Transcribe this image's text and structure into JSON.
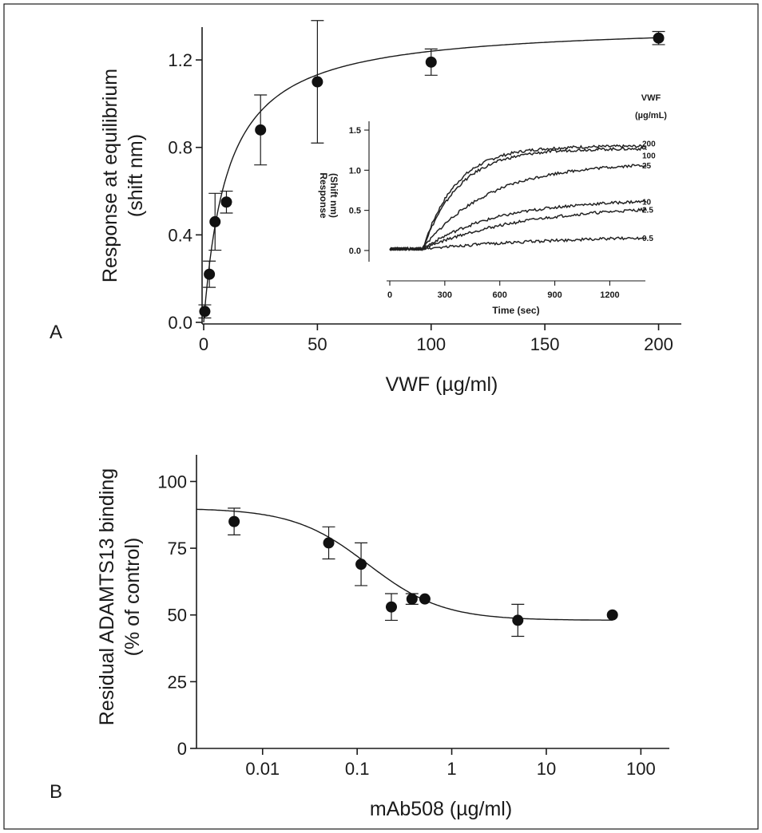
{
  "colors": {
    "ink": "#1a1a1a",
    "background": "#ffffff"
  },
  "chart_data": [
    {
      "panel": "A",
      "type": "scatter",
      "panel_label": "A",
      "xlabel": "VWF (µg/ml)",
      "ylabel_line1": "Response at equilibrium",
      "ylabel_line2": "(shift nm)",
      "xlim": [
        0,
        210
      ],
      "ylim": [
        0,
        1.35
      ],
      "x_ticks": [
        0,
        50,
        100,
        150,
        200
      ],
      "x_tick_labels": [
        "0",
        "50",
        "100",
        "150",
        "200"
      ],
      "y_ticks": [
        0.0,
        0.4,
        0.8,
        1.2
      ],
      "y_tick_labels": [
        "0.0",
        "0.4",
        "0.8",
        "1.2"
      ],
      "grid": false,
      "series": [
        {
          "x": [
            0.5,
            2.5,
            5,
            10,
            25,
            50,
            100,
            200
          ],
          "y": [
            0.05,
            0.22,
            0.46,
            0.55,
            0.88,
            1.1,
            1.19,
            1.3
          ],
          "error": [
            0.03,
            0.06,
            0.13,
            0.05,
            0.16,
            0.28,
            0.06,
            0.03
          ],
          "fit": "one-site saturation",
          "fit_bmax": 1.37,
          "fit_kd": 10.5
        }
      ],
      "inset": {
        "type": "line",
        "xlabel": "Time (sec)",
        "ylabel_line1": "Response",
        "ylabel_line2": "(Shift nm)",
        "xlim": [
          0,
          1400
        ],
        "ylim": [
          -0.1,
          1.55
        ],
        "x_ticks": [
          0,
          300,
          600,
          900,
          1200
        ],
        "x_tick_labels": [
          "0",
          "300",
          "600",
          "900",
          "1200"
        ],
        "y_ticks": [
          0.0,
          0.5,
          1.0,
          1.5
        ],
        "y_tick_labels": [
          "0.0",
          "0.5",
          "1.0",
          "1.5"
        ],
        "legend_title_line1": "VWF",
        "legend_title_line2": "(µg/mL)",
        "association_start": 180,
        "baseline": 0.02,
        "series": [
          {
            "name": "200",
            "plateau": 1.28,
            "rate": 0.0055
          },
          {
            "name": "100",
            "plateau": 1.25,
            "rate": 0.005
          },
          {
            "name": "25",
            "plateau": 1.08,
            "rate": 0.0028
          },
          {
            "name": "10",
            "plateau": 0.62,
            "rate": 0.0025
          },
          {
            "name": "2.5",
            "plateau": 0.55,
            "rate": 0.0018
          },
          {
            "name": "0.5",
            "plateau": 0.18,
            "rate": 0.0012
          }
        ]
      }
    },
    {
      "panel": "B",
      "type": "scatter",
      "panel_label": "B",
      "xlabel": "mAb508 (µg/ml)",
      "ylabel_line1": "Residual ADAMTS13 binding",
      "ylabel_line2": "(% of control)",
      "x_scale": "log",
      "xlim": [
        0.002,
        200
      ],
      "ylim": [
        0,
        110
      ],
      "x_ticks": [
        0.01,
        0.1,
        1,
        10,
        100
      ],
      "x_tick_labels": [
        "0.01",
        "0.1",
        "1",
        "10",
        "100"
      ],
      "y_ticks": [
        0,
        25,
        50,
        75,
        100
      ],
      "y_tick_labels": [
        "0",
        "25",
        "50",
        "75",
        "100"
      ],
      "grid": false,
      "series": [
        {
          "x": [
            0.005,
            0.05,
            0.11,
            0.23,
            0.38,
            0.52,
            5,
            50
          ],
          "y": [
            85,
            77,
            69,
            53,
            56,
            56,
            48,
            50
          ],
          "error": [
            5,
            6,
            8,
            5,
            2,
            0,
            6,
            0
          ],
          "fit": "sigmoidal dose-response",
          "fit_top": 90,
          "fit_bottom": 48,
          "fit_ec50": 0.13,
          "fit_hill": 1.1
        }
      ]
    }
  ]
}
